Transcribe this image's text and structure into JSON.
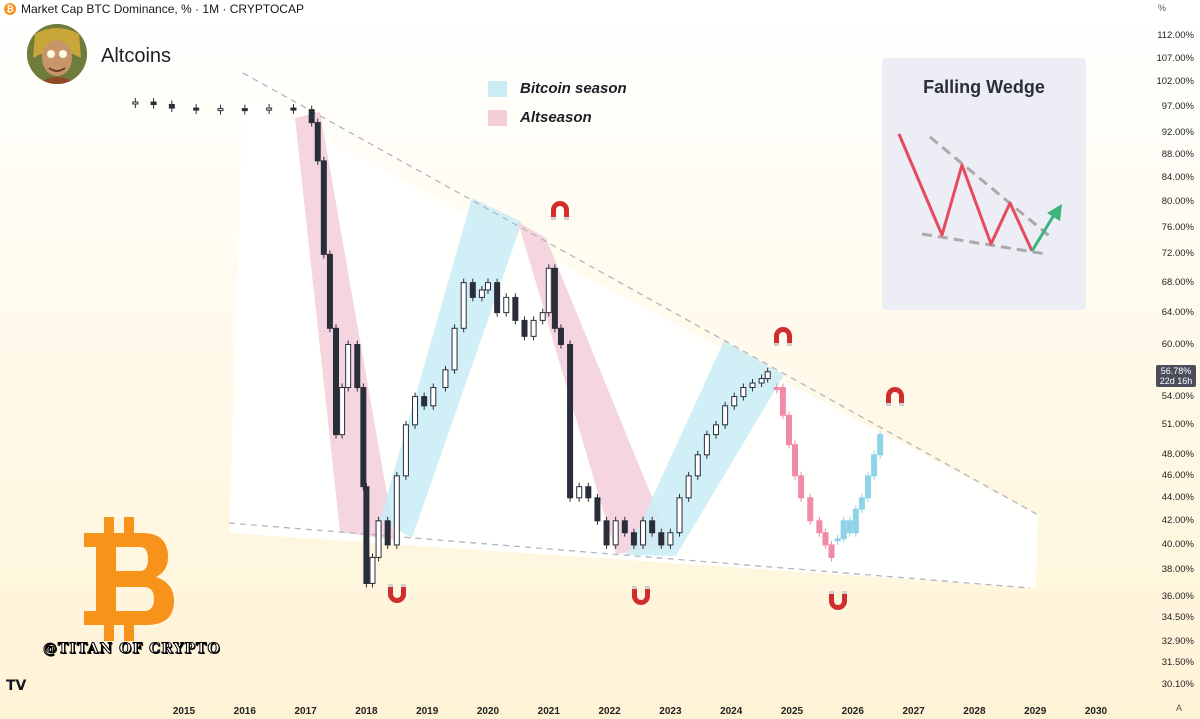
{
  "header": {
    "title": "Market Cap BTC Dominance, % · 1M · CRYPTOCAP",
    "icon": "bitcoin-icon"
  },
  "brand": {
    "name": "Altcoins",
    "avatar_icon": "avatar-icon"
  },
  "legend": [
    {
      "label": "Bitcoin season",
      "color": "#c9ecf5"
    },
    {
      "label": "Altseason",
      "color": "#f3cfda"
    }
  ],
  "wedge_card": {
    "title": "Falling Wedge",
    "icon": "falling-wedge-diagram-icon"
  },
  "watermark": {
    "handle": "@TITAN OF CRYPTO",
    "logo": "bitcoin-logo-icon",
    "tv_logo": "TV"
  },
  "axis": {
    "unit": "%",
    "current_value": "56.78%",
    "current_countdown": "22d 16h",
    "bottom_right": "A"
  },
  "chart_data": {
    "type": "candlestick",
    "title": "Market Cap BTC Dominance, % · 1M · CRYPTOCAP",
    "y_scale": "log",
    "y_ticks": [
      "112.00%",
      "107.00%",
      "102.00%",
      "97.00%",
      "92.00%",
      "88.00%",
      "84.00%",
      "80.00%",
      "76.00%",
      "72.00%",
      "68.00%",
      "64.00%",
      "60.00%",
      "56.78%",
      "54.00%",
      "51.00%",
      "48.00%",
      "46.00%",
      "44.00%",
      "42.00%",
      "40.00%",
      "38.00%",
      "36.00%",
      "34.50%",
      "32.90%",
      "31.50%",
      "30.10%"
    ],
    "x_ticks": [
      "2015",
      "2016",
      "2017",
      "2018",
      "2019",
      "2020",
      "2021",
      "2022",
      "2023",
      "2024",
      "2025",
      "2026",
      "2027",
      "2028",
      "2029",
      "2030"
    ],
    "series": [
      {
        "name": "",
        "points": [
          {
            "t": 2014.2,
            "v": 98
          },
          {
            "t": 2014.5,
            "v": 97.5
          },
          {
            "t": 2014.8,
            "v": 96.8
          },
          {
            "t": 2015.2,
            "v": 96.5
          },
          {
            "t": 2015.6,
            "v": 96.7
          },
          {
            "t": 2016.0,
            "v": 96.6
          },
          {
            "t": 2016.4,
            "v": 96.8
          },
          {
            "t": 2016.8,
            "v": 96.5
          },
          {
            "t": 2017.1,
            "v": 94
          },
          {
            "t": 2017.2,
            "v": 87
          },
          {
            "t": 2017.3,
            "v": 72
          },
          {
            "t": 2017.4,
            "v": 62
          },
          {
            "t": 2017.5,
            "v": 50
          },
          {
            "t": 2017.6,
            "v": 55
          },
          {
            "t": 2017.7,
            "v": 60
          },
          {
            "t": 2017.85,
            "v": 55
          },
          {
            "t": 2017.95,
            "v": 45
          },
          {
            "t": 2018.0,
            "v": 37
          },
          {
            "t": 2018.1,
            "v": 39
          },
          {
            "t": 2018.2,
            "v": 42
          },
          {
            "t": 2018.35,
            "v": 40
          },
          {
            "t": 2018.5,
            "v": 46
          },
          {
            "t": 2018.65,
            "v": 51
          },
          {
            "t": 2018.8,
            "v": 54
          },
          {
            "t": 2018.95,
            "v": 53
          },
          {
            "t": 2019.1,
            "v": 55
          },
          {
            "t": 2019.3,
            "v": 57
          },
          {
            "t": 2019.45,
            "v": 62
          },
          {
            "t": 2019.6,
            "v": 68
          },
          {
            "t": 2019.75,
            "v": 66
          },
          {
            "t": 2019.9,
            "v": 67
          },
          {
            "t": 2020.0,
            "v": 68
          },
          {
            "t": 2020.15,
            "v": 64
          },
          {
            "t": 2020.3,
            "v": 66
          },
          {
            "t": 2020.45,
            "v": 63
          },
          {
            "t": 2020.6,
            "v": 61
          },
          {
            "t": 2020.75,
            "v": 63
          },
          {
            "t": 2020.9,
            "v": 64
          },
          {
            "t": 2021.0,
            "v": 70
          },
          {
            "t": 2021.1,
            "v": 62
          },
          {
            "t": 2021.2,
            "v": 60
          },
          {
            "t": 2021.35,
            "v": 44
          },
          {
            "t": 2021.5,
            "v": 45
          },
          {
            "t": 2021.65,
            "v": 44
          },
          {
            "t": 2021.8,
            "v": 42
          },
          {
            "t": 2021.95,
            "v": 40
          },
          {
            "t": 2022.1,
            "v": 42
          },
          {
            "t": 2022.25,
            "v": 41
          },
          {
            "t": 2022.4,
            "v": 40
          },
          {
            "t": 2022.55,
            "v": 42
          },
          {
            "t": 2022.7,
            "v": 41
          },
          {
            "t": 2022.85,
            "v": 40
          },
          {
            "t": 2023.0,
            "v": 41
          },
          {
            "t": 2023.15,
            "v": 44
          },
          {
            "t": 2023.3,
            "v": 46
          },
          {
            "t": 2023.45,
            "v": 48
          },
          {
            "t": 2023.6,
            "v": 50
          },
          {
            "t": 2023.75,
            "v": 51
          },
          {
            "t": 2023.9,
            "v": 53
          },
          {
            "t": 2024.05,
            "v": 54
          },
          {
            "t": 2024.2,
            "v": 55
          },
          {
            "t": 2024.35,
            "v": 55.5
          },
          {
            "t": 2024.5,
            "v": 56
          },
          {
            "t": 2024.6,
            "v": 56.78
          }
        ]
      },
      {
        "name": "",
        "points": [
          {
            "t": 2024.75,
            "v": 55
          },
          {
            "t": 2024.85,
            "v": 52
          },
          {
            "t": 2024.95,
            "v": 49
          },
          {
            "t": 2025.05,
            "v": 46
          },
          {
            "t": 2025.15,
            "v": 44
          },
          {
            "t": 2025.3,
            "v": 42
          },
          {
            "t": 2025.45,
            "v": 41
          },
          {
            "t": 2025.55,
            "v": 40
          },
          {
            "t": 2025.65,
            "v": 39
          }
        ]
      },
      {
        "name": "",
        "points": [
          {
            "t": 2025.75,
            "v": 40.5
          },
          {
            "t": 2025.85,
            "v": 42
          },
          {
            "t": 2025.95,
            "v": 41
          },
          {
            "t": 2026.05,
            "v": 43
          },
          {
            "t": 2026.15,
            "v": 44
          },
          {
            "t": 2026.25,
            "v": 46
          },
          {
            "t": 2026.35,
            "v": 48
          },
          {
            "t": 2026.45,
            "v": 50
          }
        ]
      }
    ],
    "season_colors": {
      "bitcoin": "#c9ecf5",
      "alt": "#f3cfda",
      "candle": "#2a2e39",
      "projection_down": "#f08aa8",
      "projection_up": "#8fd3e8"
    }
  }
}
